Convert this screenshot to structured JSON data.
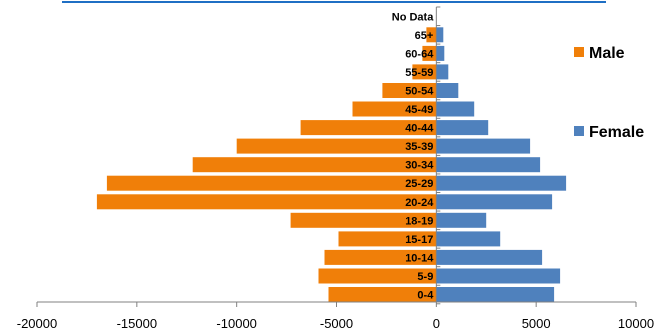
{
  "chart_data": {
    "type": "bar",
    "orientation": "horizontal",
    "categories": [
      "0-4",
      "5-9",
      "10-14",
      "15-17",
      "18-19",
      "20-24",
      "25-29",
      "30-34",
      "35-39",
      "40-44",
      "45-49",
      "50-54",
      "55-59",
      "60-64",
      "65+",
      "No Data"
    ],
    "series": [
      {
        "name": "Male",
        "color": "#f07f09",
        "values": [
          -5400,
          -5900,
          -5600,
          -4900,
          -7300,
          -17000,
          -16500,
          -12200,
          -10000,
          -6800,
          -4200,
          -2700,
          -1200,
          -700,
          -500,
          0
        ]
      },
      {
        "name": "Female",
        "color": "#4f81bd",
        "values": [
          5900,
          6200,
          5300,
          3200,
          2500,
          5800,
          6500,
          5200,
          4700,
          2600,
          1900,
          1100,
          600,
          400,
          350,
          0
        ]
      }
    ],
    "xlim": [
      -20000,
      10000
    ],
    "xticks": [
      "-20000",
      "-15000",
      "-10000",
      "-5000",
      "0",
      "5000",
      "10000"
    ],
    "legend_position": "right",
    "grid": false
  }
}
